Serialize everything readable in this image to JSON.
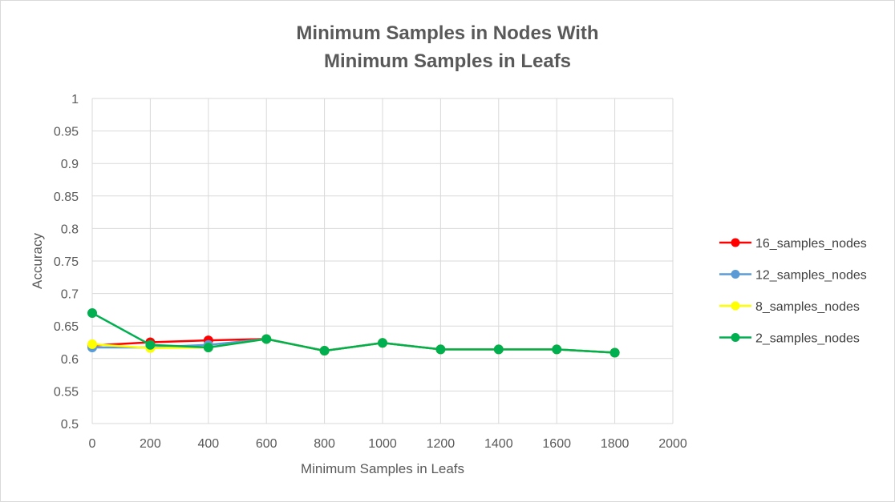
{
  "chart_data": {
    "type": "line",
    "title": [
      "Minimum Samples in Nodes With",
      "Minimum Samples in Leafs"
    ],
    "xlabel": "Minimum Samples in Leafs",
    "ylabel": "Accuracy",
    "xlim": [
      0,
      2000
    ],
    "ylim": [
      0.5,
      1
    ],
    "x_ticks": [
      0,
      200,
      400,
      600,
      800,
      1000,
      1200,
      1400,
      1600,
      1800,
      2000
    ],
    "x_tick_labels": [
      "0",
      "200",
      "400",
      "600",
      "800",
      "1000",
      "1200",
      "1400",
      "1600",
      "1800",
      "2000"
    ],
    "y_ticks": [
      0.5,
      0.55,
      0.6,
      0.65,
      0.7,
      0.75,
      0.8,
      0.85,
      0.9,
      0.95,
      1
    ],
    "y_tick_labels": [
      "0.5",
      "0.55",
      "0.6",
      "0.65",
      "0.7",
      "0.75",
      "0.8",
      "0.85",
      "0.9",
      "0.95",
      "1"
    ],
    "grid": true,
    "legend_position": "right",
    "series": [
      {
        "name": "16_samples_nodes",
        "color": "#ff0000",
        "x": [
          0,
          200,
          400,
          600,
          800,
          1000,
          1200,
          1400,
          1600,
          1800
        ],
        "y": [
          0.62,
          0.625,
          0.628,
          0.63,
          0.612,
          0.624,
          0.614,
          0.614,
          0.614,
          0.609
        ]
      },
      {
        "name": "12_samples_nodes",
        "color": "#5b9bd5",
        "x": [
          0,
          200,
          400,
          600,
          800,
          1000,
          1200,
          1400,
          1600,
          1800
        ],
        "y": [
          0.617,
          0.617,
          0.621,
          0.63,
          0.612,
          0.624,
          0.614,
          0.614,
          0.614,
          0.609
        ]
      },
      {
        "name": "8_samples_nodes",
        "color": "#ffff00",
        "x": [
          0,
          200,
          400,
          600,
          800,
          1000,
          1200,
          1400,
          1600,
          1800
        ],
        "y": [
          0.622,
          0.616,
          0.617,
          0.63,
          0.612,
          0.624,
          0.614,
          0.614,
          0.614,
          0.609
        ]
      },
      {
        "name": "2_samples_nodes",
        "color": "#00b050",
        "x": [
          0,
          200,
          400,
          600,
          800,
          1000,
          1200,
          1400,
          1600,
          1800
        ],
        "y": [
          0.67,
          0.621,
          0.617,
          0.63,
          0.612,
          0.624,
          0.614,
          0.614,
          0.614,
          0.609
        ]
      }
    ]
  }
}
